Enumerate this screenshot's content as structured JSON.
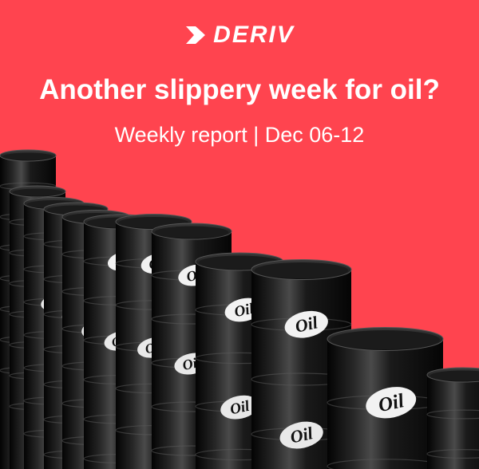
{
  "brand": {
    "name": "DERIV",
    "logo_icon": "deriv-chevron-logo-icon"
  },
  "headline": "Another slippery week for oil?",
  "subheadline": "Weekly report | Dec 06-12",
  "barrel_label": "Oil",
  "colors": {
    "background": "#ff444f",
    "text": "#ffffff",
    "barrel": "#0d0d0d"
  }
}
